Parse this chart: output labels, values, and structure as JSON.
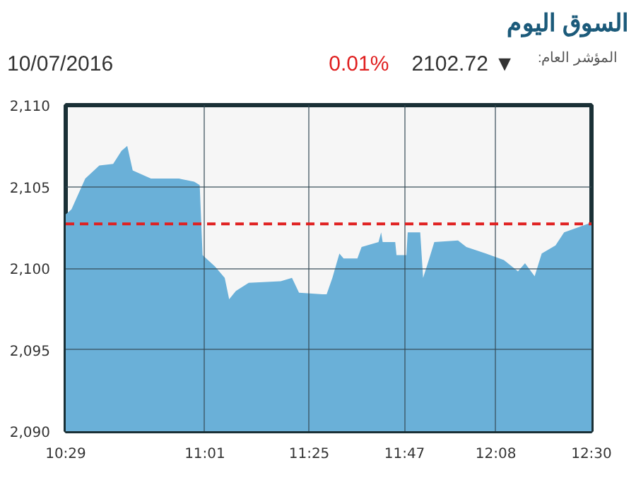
{
  "chart_data": {
    "type": "area",
    "title": "السوق اليوم",
    "annotations": [
      "10/07/2016",
      "0.01%",
      "2102.72 ▼",
      "المؤشر العام:"
    ],
    "x": [
      10.483,
      10.505,
      10.558,
      10.612,
      10.665,
      10.697,
      10.719,
      10.74,
      10.81,
      10.917,
      10.976,
      10.997,
      11.008,
      11.056,
      11.093,
      11.11,
      11.136,
      11.185,
      11.308,
      11.351,
      11.378,
      11.468,
      11.484,
      11.506,
      11.533,
      11.549,
      11.602,
      11.618,
      11.683,
      11.693,
      11.699,
      11.747,
      11.752,
      11.79,
      11.795,
      11.843,
      11.854,
      11.87,
      11.897,
      11.988,
      12.02,
      12.095,
      12.164,
      12.218,
      12.245,
      12.282,
      12.309,
      12.362,
      12.395,
      12.448,
      12.5
    ],
    "series": [
      {
        "color": "#6ab0d8",
        "values": [
          2103.3,
          2103.6,
          2105.5,
          2106.3,
          2106.4,
          2107.2,
          2107.5,
          2106.0,
          2105.5,
          2105.5,
          2105.3,
          2105.1,
          2100.8,
          2100.1,
          2099.4,
          2098.1,
          2098.6,
          2099.1,
          2099.2,
          2099.4,
          2098.5,
          2098.4,
          2098.4,
          2099.4,
          2100.9,
          2100.6,
          2100.6,
          2101.3,
          2101.6,
          2102.2,
          2101.6,
          2101.6,
          2100.8,
          2100.8,
          2102.2,
          2102.2,
          2099.4,
          2100.2,
          2101.6,
          2101.7,
          2101.3,
          2100.9,
          2100.5,
          2099.8,
          2100.3,
          2099.5,
          2100.9,
          2101.4,
          2102.2,
          2102.5,
          2102.8
        ]
      }
    ],
    "xlim": [
      10.483,
      12.5
    ],
    "xticks": [
      {
        "value": 10.483,
        "label": "10:29"
      },
      {
        "value": 11.017,
        "label": "11:01"
      },
      {
        "value": 11.417,
        "label": "11:25"
      },
      {
        "value": 11.783,
        "label": "11:47"
      },
      {
        "value": 12.133,
        "label": "12:08"
      },
      {
        "value": 12.5,
        "label": "12:30"
      }
    ],
    "ylim": [
      2090,
      2110
    ],
    "yticks": [
      {
        "value": 2090,
        "label": "2,090"
      },
      {
        "value": 2095,
        "label": "2,095"
      },
      {
        "value": 2100,
        "label": "2,100"
      },
      {
        "value": 2105,
        "label": "2,105"
      },
      {
        "value": 2110,
        "label": "2,110"
      }
    ],
    "ref_lines": [
      {
        "axis": "y",
        "value": 2102.72,
        "color": "#e02020",
        "line_style": "dashed"
      }
    ],
    "grid": true
  }
}
